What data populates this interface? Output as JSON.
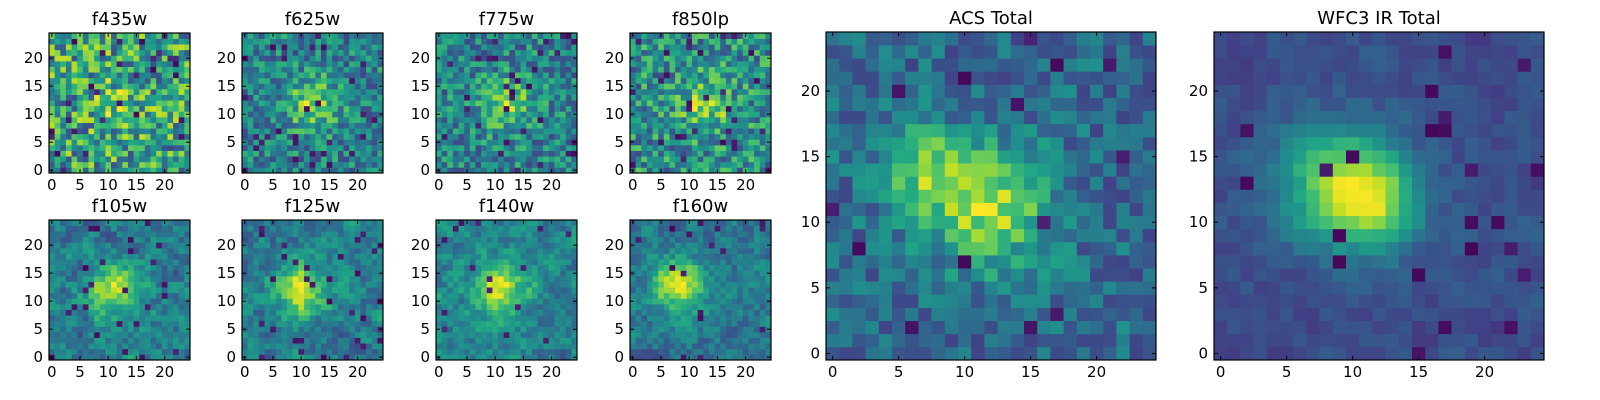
{
  "figure": {
    "colormap": "viridis"
  },
  "chart_data": [
    {
      "type": "heatmap",
      "title": "f435w",
      "xticks": [
        "0",
        "5",
        "10",
        "15",
        "20"
      ],
      "yticks": [
        "0",
        "5",
        "10",
        "15",
        "20"
      ],
      "xlim": [
        0,
        25
      ],
      "ylim": [
        0,
        25
      ],
      "grid": false,
      "peak": [
        12,
        12
      ],
      "peak_strength": 0.15,
      "noise": 0.95,
      "smooth": 0,
      "seed": 11,
      "dark_fraction": 0.05
    },
    {
      "type": "heatmap",
      "title": "f625w",
      "xticks": [
        "0",
        "5",
        "10",
        "15",
        "20"
      ],
      "yticks": [
        "0",
        "5",
        "10",
        "15",
        "20"
      ],
      "xlim": [
        0,
        25
      ],
      "ylim": [
        0,
        25
      ],
      "grid": false,
      "peak": [
        12,
        12
      ],
      "peak_strength": 0.45,
      "noise": 0.75,
      "smooth": 0,
      "seed": 23,
      "dark_fraction": 0.04
    },
    {
      "type": "heatmap",
      "title": "f775w",
      "xticks": [
        "0",
        "5",
        "10",
        "15",
        "20"
      ],
      "yticks": [
        "0",
        "5",
        "10",
        "15",
        "20"
      ],
      "xlim": [
        0,
        25
      ],
      "ylim": [
        0,
        25
      ],
      "grid": false,
      "peak": [
        12,
        12
      ],
      "peak_strength": 0.4,
      "noise": 0.75,
      "smooth": 0,
      "seed": 37,
      "dark_fraction": 0.05
    },
    {
      "type": "heatmap",
      "title": "f850lp",
      "xticks": [
        "0",
        "5",
        "10",
        "15",
        "20"
      ],
      "yticks": [
        "0",
        "5",
        "10",
        "15",
        "20"
      ],
      "xlim": [
        0,
        25
      ],
      "ylim": [
        0,
        25
      ],
      "grid": false,
      "peak": [
        13,
        12
      ],
      "peak_strength": 0.35,
      "noise": 0.8,
      "smooth": 0,
      "seed": 41,
      "dark_fraction": 0.06
    },
    {
      "type": "heatmap",
      "title": "ACS Total",
      "xticks": [
        "0",
        "5",
        "10",
        "15",
        "20"
      ],
      "yticks": [
        "0",
        "5",
        "10",
        "15",
        "20"
      ],
      "xlim": [
        0,
        25
      ],
      "ylim": [
        0,
        25
      ],
      "grid": false,
      "peak": [
        12,
        11
      ],
      "peak_strength": 0.65,
      "secondary_peak": [
        7,
        14
      ],
      "noise": 0.55,
      "smooth": 0,
      "seed": 53,
      "dark_fraction": 0.03
    },
    {
      "type": "heatmap",
      "title": "f105w",
      "xticks": [
        "0",
        "5",
        "10",
        "15",
        "20"
      ],
      "yticks": [
        "0",
        "5",
        "10",
        "15",
        "20"
      ],
      "xlim": [
        0,
        25
      ],
      "ylim": [
        0,
        25
      ],
      "grid": false,
      "peak": [
        11,
        12
      ],
      "peak_strength": 0.55,
      "noise": 0.6,
      "smooth": 1,
      "seed": 61,
      "dark_fraction": 0.04
    },
    {
      "type": "heatmap",
      "title": "f125w",
      "xticks": [
        "0",
        "5",
        "10",
        "15",
        "20"
      ],
      "yticks": [
        "0",
        "5",
        "10",
        "15",
        "20"
      ],
      "xlim": [
        0,
        25
      ],
      "ylim": [
        0,
        25
      ],
      "grid": false,
      "peak": [
        10,
        12
      ],
      "peak_strength": 0.6,
      "noise": 0.6,
      "smooth": 1,
      "seed": 73,
      "dark_fraction": 0.04
    },
    {
      "type": "heatmap",
      "title": "f140w",
      "xticks": [
        "0",
        "5",
        "10",
        "15",
        "20"
      ],
      "yticks": [
        "0",
        "5",
        "10",
        "15",
        "20"
      ],
      "xlim": [
        0,
        25
      ],
      "ylim": [
        0,
        25
      ],
      "grid": false,
      "peak": [
        11,
        12
      ],
      "peak_strength": 0.55,
      "noise": 0.55,
      "smooth": 1,
      "seed": 83,
      "dark_fraction": 0.03
    },
    {
      "type": "heatmap",
      "title": "f160w",
      "xticks": [
        "0",
        "5",
        "10",
        "15",
        "20"
      ],
      "yticks": [
        "0",
        "5",
        "10",
        "15",
        "20"
      ],
      "xlim": [
        0,
        25
      ],
      "ylim": [
        0,
        25
      ],
      "grid": false,
      "peak": [
        8,
        13
      ],
      "peak_strength": 0.65,
      "noise": 0.55,
      "smooth": 1,
      "seed": 97,
      "dark_fraction": 0.03
    },
    {
      "type": "heatmap",
      "title": "WFC3 IR Total",
      "xticks": [
        "0",
        "5",
        "10",
        "15",
        "20"
      ],
      "yticks": [
        "0",
        "5",
        "10",
        "15",
        "20"
      ],
      "xlim": [
        0,
        25
      ],
      "ylim": [
        0,
        25
      ],
      "grid": false,
      "peak": [
        9,
        13
      ],
      "peak_strength": 0.9,
      "secondary_peak": [
        12,
        11
      ],
      "noise": 0.35,
      "smooth": 1,
      "seed": 109,
      "dark_fraction": 0.04
    }
  ]
}
